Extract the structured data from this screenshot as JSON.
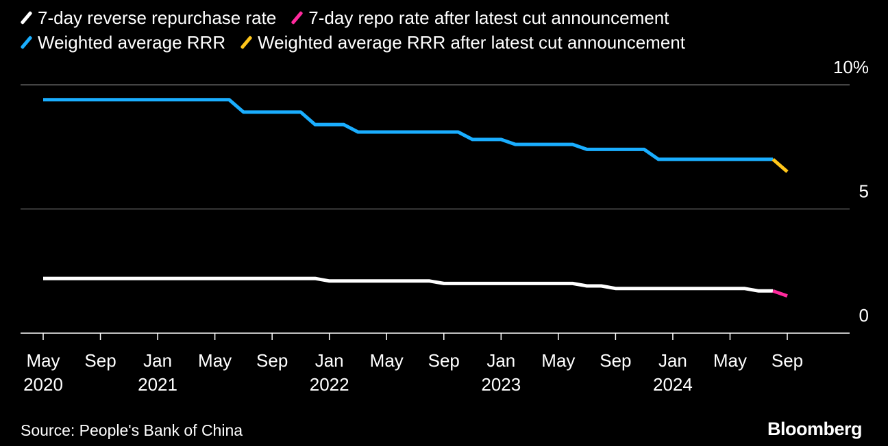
{
  "legend": {
    "items": [
      {
        "label": "7-day reverse repurchase rate",
        "color": "#ffffff"
      },
      {
        "label": "7-day repo rate after latest cut announcement",
        "color": "#ff2a9d"
      },
      {
        "label": "Weighted average RRR",
        "color": "#1aaeff"
      },
      {
        "label": "Weighted average RRR after latest cut announcement",
        "color": "#ffc61a"
      }
    ]
  },
  "chart_data": {
    "type": "line",
    "title": "",
    "xlabel": "",
    "ylabel": "",
    "ylim": [
      0,
      10
    ],
    "y_unit": "%",
    "y_ticks": [
      {
        "value": 10,
        "label": "10%"
      },
      {
        "value": 5,
        "label": "5"
      },
      {
        "value": 0,
        "label": "0"
      }
    ],
    "x_range": [
      "2020-04",
      "2024-12"
    ],
    "x_ticks": [
      {
        "date": "2020-05",
        "label": "May",
        "year": "2020"
      },
      {
        "date": "2020-09",
        "label": "Sep",
        "year": ""
      },
      {
        "date": "2021-01",
        "label": "Jan",
        "year": "2021"
      },
      {
        "date": "2021-05",
        "label": "May",
        "year": ""
      },
      {
        "date": "2021-09",
        "label": "Sep",
        "year": ""
      },
      {
        "date": "2022-01",
        "label": "Jan",
        "year": "2022"
      },
      {
        "date": "2022-05",
        "label": "May",
        "year": ""
      },
      {
        "date": "2022-09",
        "label": "Sep",
        "year": ""
      },
      {
        "date": "2023-01",
        "label": "Jan",
        "year": "2023"
      },
      {
        "date": "2023-05",
        "label": "May",
        "year": ""
      },
      {
        "date": "2023-09",
        "label": "Sep",
        "year": ""
      },
      {
        "date": "2024-01",
        "label": "Jan",
        "year": "2024"
      },
      {
        "date": "2024-05",
        "label": "May",
        "year": ""
      },
      {
        "date": "2024-09",
        "label": "Sep",
        "year": ""
      }
    ],
    "grid": true,
    "series": [
      {
        "name": "7-day reverse repurchase rate",
        "color": "#ffffff",
        "points": [
          [
            "2020-05",
            2.2
          ],
          [
            "2021-12",
            2.2
          ],
          [
            "2022-01",
            2.1
          ],
          [
            "2022-08",
            2.1
          ],
          [
            "2022-09",
            2.0
          ],
          [
            "2023-06",
            2.0
          ],
          [
            "2023-07",
            1.9
          ],
          [
            "2023-08",
            1.9
          ],
          [
            "2023-09",
            1.8
          ],
          [
            "2024-06",
            1.8
          ],
          [
            "2024-07",
            1.7
          ],
          [
            "2024-08",
            1.7
          ]
        ]
      },
      {
        "name": "7-day repo rate after latest cut announcement",
        "color": "#ff2a9d",
        "points": [
          [
            "2024-08",
            1.7
          ],
          [
            "2024-09",
            1.5
          ]
        ]
      },
      {
        "name": "Weighted average RRR",
        "color": "#1aaeff",
        "points": [
          [
            "2020-05",
            9.4
          ],
          [
            "2021-06",
            9.4
          ],
          [
            "2021-07",
            8.9
          ],
          [
            "2021-11",
            8.9
          ],
          [
            "2021-12",
            8.4
          ],
          [
            "2022-02",
            8.4
          ],
          [
            "2022-03",
            8.1
          ],
          [
            "2022-10",
            8.1
          ],
          [
            "2022-11",
            7.8
          ],
          [
            "2023-01",
            7.8
          ],
          [
            "2023-02",
            7.6
          ],
          [
            "2023-06",
            7.6
          ],
          [
            "2023-07",
            7.4
          ],
          [
            "2023-11",
            7.4
          ],
          [
            "2023-12",
            7.0
          ],
          [
            "2024-08",
            7.0
          ]
        ]
      },
      {
        "name": "Weighted average RRR after latest cut announcement",
        "color": "#ffc61a",
        "points": [
          [
            "2024-08",
            7.0
          ],
          [
            "2024-09",
            6.5
          ]
        ]
      }
    ]
  },
  "footer": {
    "source": "Source: People's Bank of China",
    "brand": "Bloomberg"
  }
}
